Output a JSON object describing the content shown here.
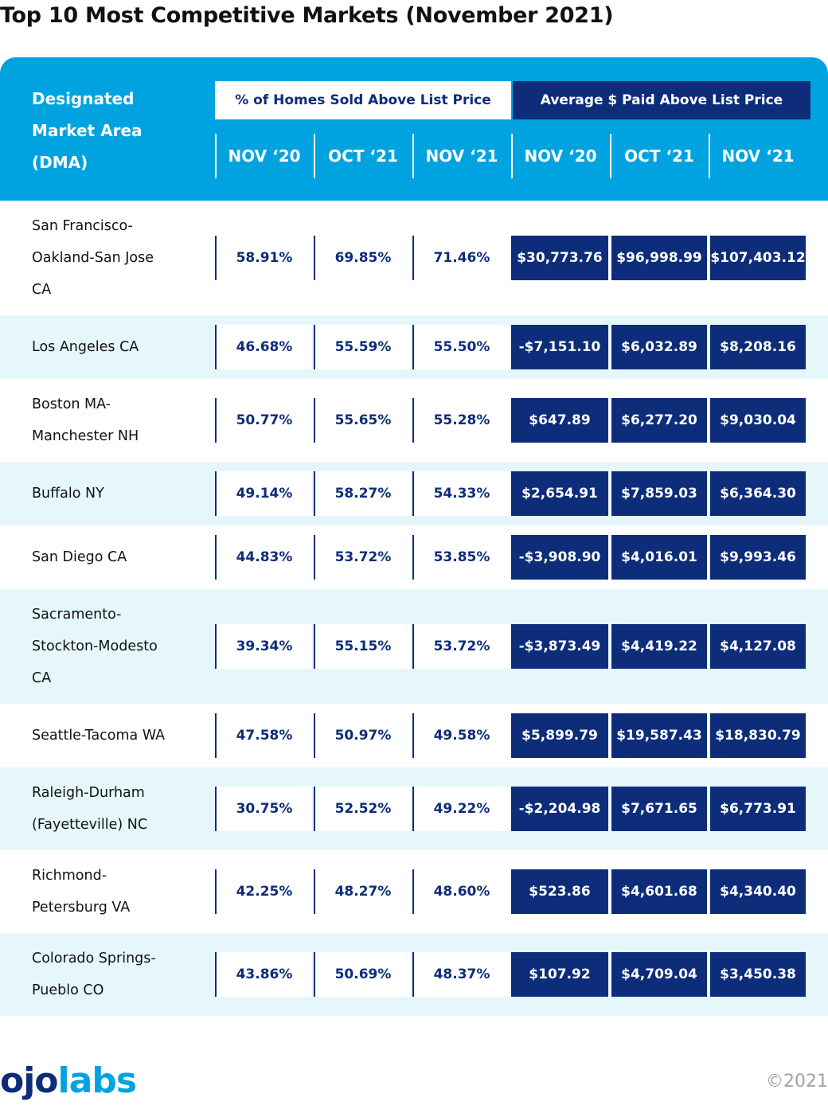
{
  "title": "Top 10 Most Competitive Markets (November 2021)",
  "header": {
    "dma": "Designated\nMarket Area\n(DMA)",
    "group_pct": "% of Homes Sold Above List Price",
    "group_avg": "Average $ Paid Above List Price",
    "columns": [
      "NOV ‘20",
      "OCT ‘21",
      "NOV ‘21",
      "NOV ‘20",
      "OCT ‘21",
      "NOV ‘21"
    ]
  },
  "rows": [
    {
      "dma": "San Francisco-\nOakland-San Jose\nCA",
      "pct": [
        "58.91%",
        "69.85%",
        "71.46%"
      ],
      "avg": [
        "$30,773.76",
        "$96,998.99",
        "$107,403.12"
      ]
    },
    {
      "dma": "Los Angeles CA",
      "pct": [
        "46.68%",
        "55.59%",
        "55.50%"
      ],
      "avg": [
        "-$7,151.10",
        "$6,032.89",
        "$8,208.16"
      ]
    },
    {
      "dma": "Boston MA-\nManchester NH",
      "pct": [
        "50.77%",
        "55.65%",
        "55.28%"
      ],
      "avg": [
        "$647.89",
        "$6,277.20",
        "$9,030.04"
      ]
    },
    {
      "dma": "Buffalo NY",
      "pct": [
        "49.14%",
        "58.27%",
        "54.33%"
      ],
      "avg": [
        "$2,654.91",
        "$7,859.03",
        "$6,364.30"
      ]
    },
    {
      "dma": "San Diego CA",
      "pct": [
        "44.83%",
        "53.72%",
        "53.85%"
      ],
      "avg": [
        "-$3,908.90",
        "$4,016.01",
        "$9,993.46"
      ]
    },
    {
      "dma": "Sacramento-\nStockton-Modesto\nCA",
      "pct": [
        "39.34%",
        "55.15%",
        "53.72%"
      ],
      "avg": [
        "-$3,873.49",
        "$4,419.22",
        "$4,127.08"
      ]
    },
    {
      "dma": "Seattle-Tacoma WA",
      "pct": [
        "47.58%",
        "50.97%",
        "49.58%"
      ],
      "avg": [
        "$5,899.79",
        "$19,587.43",
        "$18,830.79"
      ]
    },
    {
      "dma": "Raleigh-Durham\n(Fayetteville) NC",
      "pct": [
        "30.75%",
        "52.52%",
        "49.22%"
      ],
      "avg": [
        "-$2,204.98",
        "$7,671.65",
        "$6,773.91"
      ]
    },
    {
      "dma": "Richmond-\nPetersburg VA",
      "pct": [
        "42.25%",
        "48.27%",
        "48.60%"
      ],
      "avg": [
        "$523.86",
        "$4,601.68",
        "$4,340.40"
      ]
    },
    {
      "dma": "Colorado Springs-\nPueblo CO",
      "pct": [
        "43.86%",
        "50.69%",
        "48.37%"
      ],
      "avg": [
        "$107.92",
        "$4,709.04",
        "$3,450.38"
      ]
    }
  ],
  "footer": {
    "logo_part1": "ojo",
    "logo_part2": "labs",
    "copyright": "©2021"
  },
  "colors": {
    "header_blue": "#00a3e0",
    "navy": "#0d2d7a",
    "alt_row": "#e6f7fc"
  }
}
